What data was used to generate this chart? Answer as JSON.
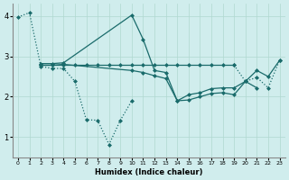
{
  "xlabel": "Humidex (Indice chaleur)",
  "bg_color": "#d0eded",
  "line_color": "#1a6b6b",
  "grid_color": "#b0d8d0",
  "xlim": [
    -0.5,
    23.5
  ],
  "ylim": [
    0.5,
    4.3
  ],
  "yticks": [
    1,
    2,
    3,
    4
  ],
  "series1_x": [
    0,
    1,
    2,
    3,
    4,
    5,
    6,
    7,
    8,
    9,
    10
  ],
  "series1_y": [
    3.97,
    4.08,
    2.75,
    2.7,
    2.7,
    2.38,
    1.43,
    1.42,
    0.82,
    1.42,
    1.9
  ],
  "series1_style": "dotted",
  "series2_x": [
    2,
    3,
    4,
    10,
    11,
    12,
    13,
    14,
    15,
    16,
    17,
    18,
    19,
    20,
    21,
    22,
    23
  ],
  "series2_y": [
    2.82,
    2.82,
    2.84,
    4.02,
    3.42,
    2.65,
    2.6,
    1.9,
    1.92,
    2.0,
    2.08,
    2.1,
    2.05,
    2.38,
    2.65,
    2.5,
    2.9
  ],
  "series2_style": "solid",
  "series3_x": [
    2,
    3,
    4,
    10,
    11,
    12,
    13,
    14,
    15,
    16,
    17,
    18,
    19,
    20,
    21
  ],
  "series3_y": [
    2.78,
    2.78,
    2.8,
    2.65,
    2.6,
    2.52,
    2.45,
    1.9,
    2.05,
    2.1,
    2.2,
    2.22,
    2.22,
    2.38,
    2.22
  ],
  "series3_style": "solid",
  "series4_x": [
    2,
    3,
    4,
    5,
    6,
    7,
    8,
    9,
    10,
    11,
    12,
    13,
    14,
    15,
    16,
    17,
    18,
    19
  ],
  "series4_y": [
    2.78,
    2.78,
    2.78,
    2.78,
    2.78,
    2.78,
    2.78,
    2.78,
    2.78,
    2.78,
    2.78,
    2.78,
    2.78,
    2.78,
    2.78,
    2.78,
    2.78,
    2.78
  ],
  "series4_style": "solid",
  "series5_x": [
    19,
    20,
    21,
    22,
    23
  ],
  "series5_y": [
    2.78,
    2.38,
    2.48,
    2.22,
    2.9
  ],
  "series5_style": "dotted"
}
